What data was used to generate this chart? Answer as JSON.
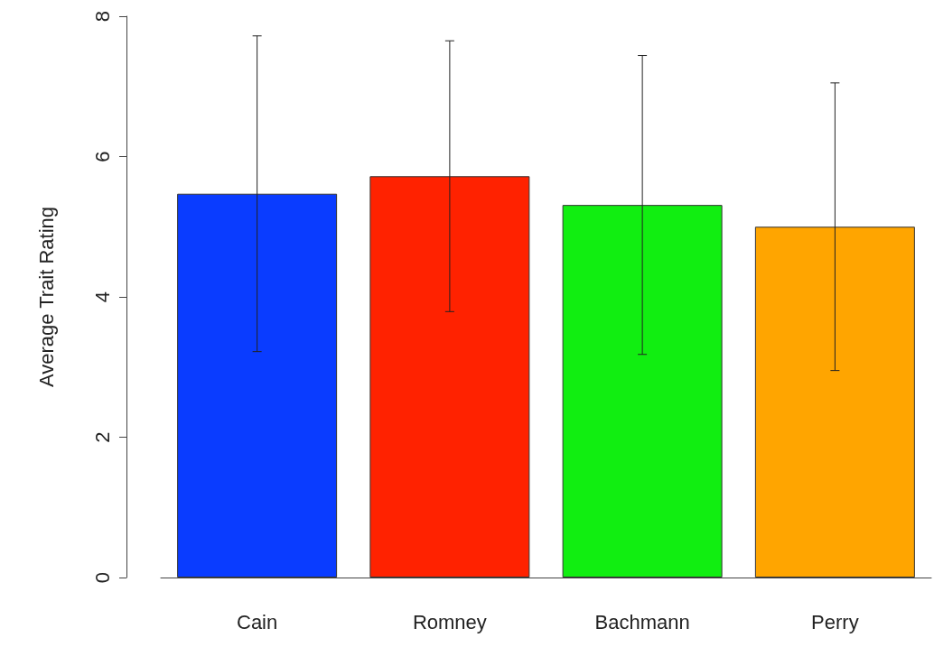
{
  "chart_data": {
    "type": "bar",
    "ylabel": "Average Trait Rating",
    "categories": [
      "Cain",
      "Romney",
      "Bachmann",
      "Perry"
    ],
    "values": [
      5.47,
      5.72,
      5.31,
      5.0
    ],
    "errors": [
      2.25,
      1.93,
      2.13,
      2.05
    ],
    "colors": [
      "#0a3cff",
      "#ff2200",
      "#11ee11",
      "#ffa500"
    ],
    "ylim": [
      0,
      8
    ],
    "yticks": [
      0,
      2,
      4,
      6,
      8
    ],
    "grid": false
  }
}
